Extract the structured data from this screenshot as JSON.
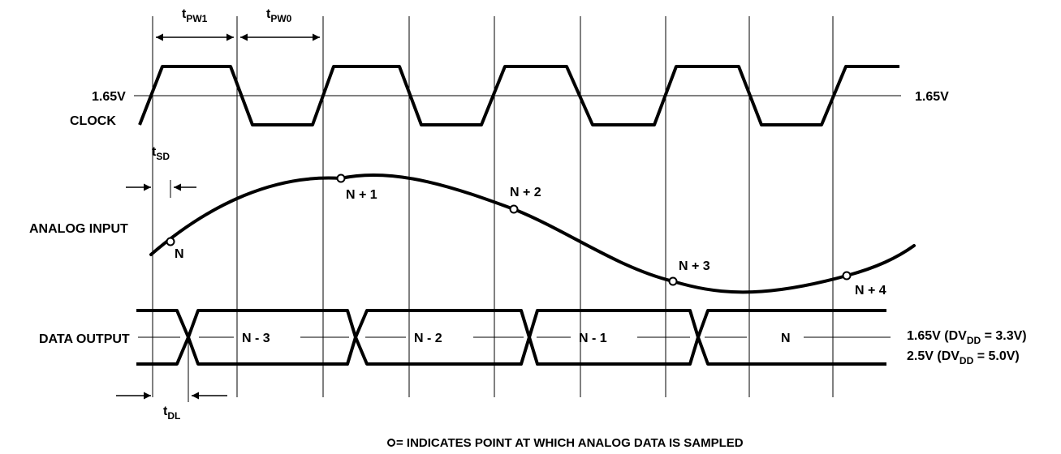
{
  "signals": {
    "clock": "CLOCK",
    "analog_input": "ANALOG INPUT",
    "data_output": "DATA OUTPUT"
  },
  "levels": {
    "clock_left": "1.65V",
    "clock_right": "1.65V",
    "data_right_1_pre": "1.65V (DV",
    "data_right_1_sub": "DD",
    "data_right_1_post": " = 3.3V)",
    "data_right_2_pre": "2.5V (DV",
    "data_right_2_sub": "DD",
    "data_right_2_post": " = 5.0V)"
  },
  "timing": {
    "tpw1_main": "t",
    "tpw1_sub": "PW1",
    "tpw0_main": "t",
    "tpw0_sub": "PW0",
    "tsd_main": "t",
    "tsd_sub": "SD",
    "tdl_main": "t",
    "tdl_sub": "DL"
  },
  "samples": [
    "N",
    "N + 1",
    "N + 2",
    "N + 3",
    "N + 4"
  ],
  "outputs": [
    "N - 3",
    "N - 2",
    "N - 1",
    "N"
  ],
  "legend": {
    "symbol": "o",
    "text": " = INDICATES POINT AT WHICH ANALOG DATA IS SAMPLED"
  },
  "colors": {
    "ink": "#000000",
    "background": "#ffffff"
  }
}
